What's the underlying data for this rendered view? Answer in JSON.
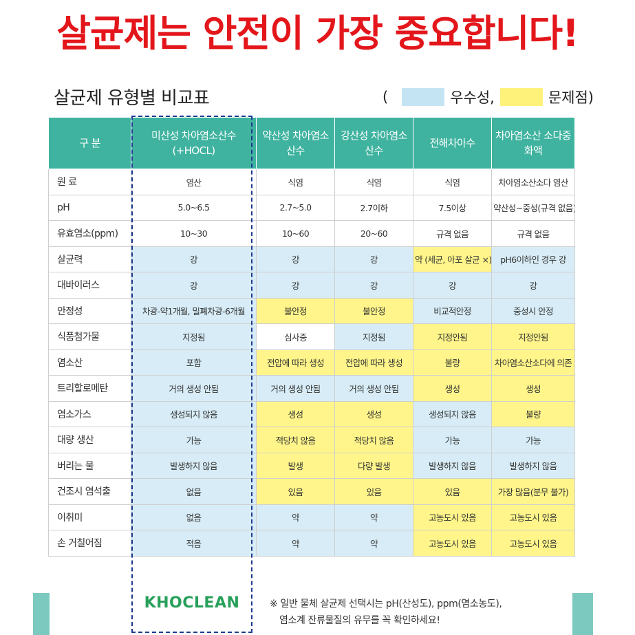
{
  "headline": "살균제는 안전이 가장 중요합니다!",
  "subtitle": "살균제 유형별 비교표",
  "legend": {
    "open": "(",
    "good_label": "우수성,",
    "bad_label": "문제점)"
  },
  "colors": {
    "good": "#d7ecf6",
    "bad": "#fff58a",
    "header": "#3fb39f",
    "headline": "#e3161b"
  },
  "table": {
    "headers": [
      "구 분",
      "미산성 차아염소산수 (+HOCL)",
      "약산성 차아염소산수",
      "강산성 차아염소산수",
      "전해차아수",
      "차아염소산 소다중화액"
    ],
    "rows": [
      {
        "label": "원 료",
        "cells": [
          {
            "text": "염산",
            "bg": "w",
            "tc": "dark"
          },
          {
            "text": "식염",
            "bg": "w",
            "tc": "dark"
          },
          {
            "text": "식염",
            "bg": "w",
            "tc": "dark"
          },
          {
            "text": "식염",
            "bg": "w",
            "tc": "dark"
          },
          {
            "text": "차아염소산소다 염산",
            "bg": "w",
            "tc": "dark"
          }
        ]
      },
      {
        "label": "pH",
        "cells": [
          {
            "text": "5.0~6.5",
            "bg": "w",
            "tc": "dark"
          },
          {
            "text": "2.7~5.0",
            "bg": "w",
            "tc": "dark"
          },
          {
            "text": "2.7이하",
            "bg": "w",
            "tc": "dark"
          },
          {
            "text": "7.5이상",
            "bg": "w",
            "tc": "dark"
          },
          {
            "text": "약산성~중성(규격 없음)",
            "bg": "w",
            "tc": "dark"
          }
        ]
      },
      {
        "label": "유효염소(ppm)",
        "cells": [
          {
            "text": "10~30",
            "bg": "w",
            "tc": "dark"
          },
          {
            "text": "10~60",
            "bg": "w",
            "tc": "dark"
          },
          {
            "text": "20~60",
            "bg": "w",
            "tc": "dark"
          },
          {
            "text": "규격 없음",
            "bg": "w",
            "tc": "dark"
          },
          {
            "text": "규격 없음",
            "bg": "w",
            "tc": "dark"
          }
        ]
      },
      {
        "label": "살균력",
        "cells": [
          {
            "text": "강",
            "bg": "g",
            "tc": "blue"
          },
          {
            "text": "강",
            "bg": "g",
            "tc": "blue"
          },
          {
            "text": "강",
            "bg": "g",
            "tc": "blue"
          },
          {
            "text": "약 (세균, 아포 살균 ×)",
            "bg": "y",
            "tc": "red"
          },
          {
            "text": "pH6이하인 경우 강",
            "bg": "g",
            "tc": "dark"
          }
        ]
      },
      {
        "label": "대바이러스",
        "cells": [
          {
            "text": "강",
            "bg": "g",
            "tc": "blue"
          },
          {
            "text": "강",
            "bg": "g",
            "tc": "blue"
          },
          {
            "text": "강",
            "bg": "g",
            "tc": "blue"
          },
          {
            "text": "강",
            "bg": "g",
            "tc": "blue"
          },
          {
            "text": "강",
            "bg": "g",
            "tc": "blue"
          }
        ]
      },
      {
        "label": "안정성",
        "cells": [
          {
            "text": "차광-약1개월, 밀폐차광-6개월",
            "bg": "g",
            "tc": "blue"
          },
          {
            "text": "불안정",
            "bg": "y",
            "tc": "red"
          },
          {
            "text": "불안정",
            "bg": "y",
            "tc": "red"
          },
          {
            "text": "비교적안정",
            "bg": "g",
            "tc": "blue"
          },
          {
            "text": "중성시 안정",
            "bg": "g",
            "tc": "blue"
          }
        ]
      },
      {
        "label": "식품첨가물",
        "cells": [
          {
            "text": "지정됨",
            "bg": "g",
            "tc": "blue"
          },
          {
            "text": "심사중",
            "bg": "w",
            "tc": "dark"
          },
          {
            "text": "지정됨",
            "bg": "g",
            "tc": "blue"
          },
          {
            "text": "지정안됨",
            "bg": "y",
            "tc": "red"
          },
          {
            "text": "지정안됨",
            "bg": "y",
            "tc": "red"
          }
        ]
      },
      {
        "label": "염소산",
        "cells": [
          {
            "text": "포함",
            "bg": "g",
            "tc": "blue"
          },
          {
            "text": "전압에 따라 생성",
            "bg": "y",
            "tc": "red"
          },
          {
            "text": "전압에 따라 생성",
            "bg": "y",
            "tc": "red"
          },
          {
            "text": "불량",
            "bg": "y",
            "tc": "red"
          },
          {
            "text": "차아염소산소다에 의존",
            "bg": "y",
            "tc": "red"
          }
        ]
      },
      {
        "label": "트리할로메탄",
        "cells": [
          {
            "text": "거의 생성 안됨",
            "bg": "g",
            "tc": "blue"
          },
          {
            "text": "거의 생성 안됨",
            "bg": "g",
            "tc": "blue"
          },
          {
            "text": "거의 생성 안됨",
            "bg": "g",
            "tc": "blue"
          },
          {
            "text": "생성",
            "bg": "y",
            "tc": "red"
          },
          {
            "text": "생성",
            "bg": "y",
            "tc": "red"
          }
        ]
      },
      {
        "label": "염소가스",
        "cells": [
          {
            "text": "생성되지 않음",
            "bg": "g",
            "tc": "blue"
          },
          {
            "text": "생성",
            "bg": "y",
            "tc": "red"
          },
          {
            "text": "생성",
            "bg": "y",
            "tc": "red"
          },
          {
            "text": "생성되지 않음",
            "bg": "g",
            "tc": "blue"
          },
          {
            "text": "불량",
            "bg": "y",
            "tc": "red"
          }
        ]
      },
      {
        "label": "대량 생산",
        "cells": [
          {
            "text": "가능",
            "bg": "g",
            "tc": "blue"
          },
          {
            "text": "적당치 않음",
            "bg": "y",
            "tc": "red"
          },
          {
            "text": "적당치 않음",
            "bg": "y",
            "tc": "red"
          },
          {
            "text": "가능",
            "bg": "g",
            "tc": "blue"
          },
          {
            "text": "가능",
            "bg": "g",
            "tc": "blue"
          }
        ]
      },
      {
        "label": "버리는 물",
        "cells": [
          {
            "text": "발생하지 않음",
            "bg": "g",
            "tc": "blue"
          },
          {
            "text": "발생",
            "bg": "y",
            "tc": "red"
          },
          {
            "text": "다량 발생",
            "bg": "y",
            "tc": "red"
          },
          {
            "text": "발생하지 않음",
            "bg": "g",
            "tc": "blue"
          },
          {
            "text": "발생하지 않음",
            "bg": "g",
            "tc": "blue"
          }
        ]
      },
      {
        "label": "건조시 염석출",
        "cells": [
          {
            "text": "없음",
            "bg": "g",
            "tc": "blue"
          },
          {
            "text": "있음",
            "bg": "y",
            "tc": "red"
          },
          {
            "text": "있음",
            "bg": "y",
            "tc": "red"
          },
          {
            "text": "있음",
            "bg": "y",
            "tc": "red"
          },
          {
            "text": "가장 많음(분무 불가)",
            "bg": "y",
            "tc": "red"
          }
        ]
      },
      {
        "label": "이취미",
        "cells": [
          {
            "text": "없음",
            "bg": "g",
            "tc": "blue"
          },
          {
            "text": "약",
            "bg": "g",
            "tc": "blue"
          },
          {
            "text": "약",
            "bg": "g",
            "tc": "blue"
          },
          {
            "text": "고농도시 있음",
            "bg": "y",
            "tc": "red"
          },
          {
            "text": "고농도시 있음",
            "bg": "y",
            "tc": "red"
          }
        ]
      },
      {
        "label": "손 거칠어짐",
        "cells": [
          {
            "text": "적음",
            "bg": "g",
            "tc": "blue"
          },
          {
            "text": "약",
            "bg": "g",
            "tc": "blue"
          },
          {
            "text": "약",
            "bg": "g",
            "tc": "blue"
          },
          {
            "text": "고농도시 있음",
            "bg": "y",
            "tc": "red"
          },
          {
            "text": "고농도시 있음",
            "bg": "y",
            "tc": "red"
          }
        ]
      }
    ]
  },
  "logo": "KHOCLEAN",
  "note": {
    "line1": "※ 일반 물체 살균제 선택시는 pH(산성도), ppm(염소농도),",
    "line2": "염소계 잔류물질의 유무를 꼭 확인하세요!"
  }
}
